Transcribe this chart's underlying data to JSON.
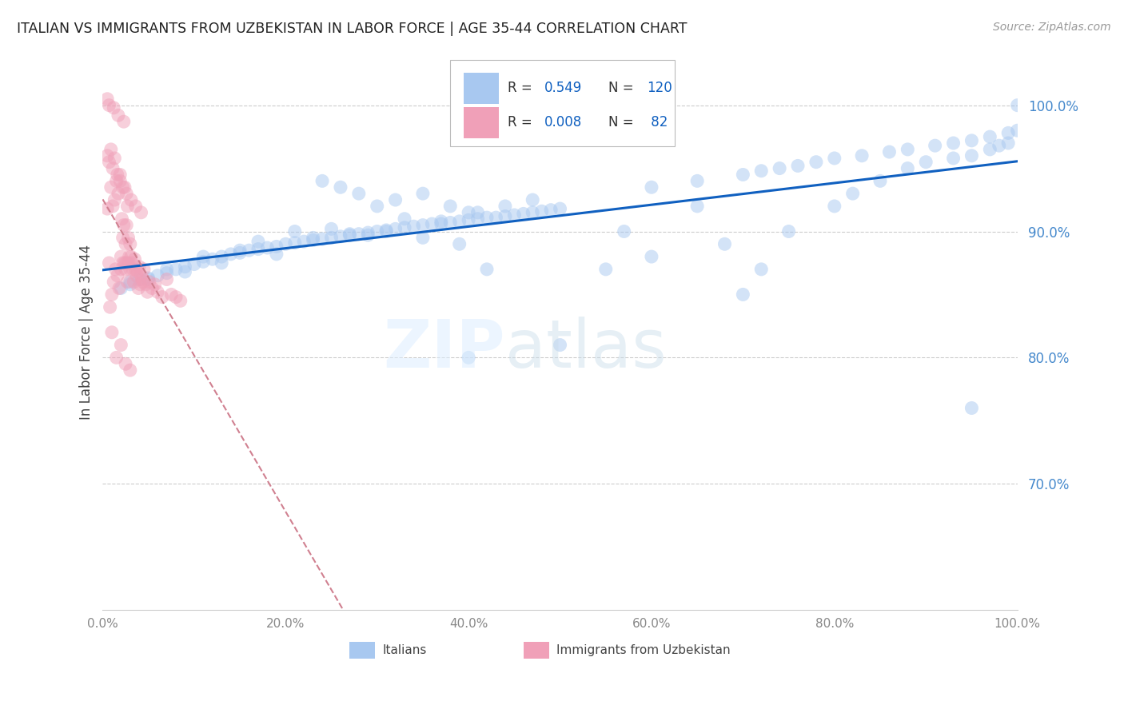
{
  "title": "ITALIAN VS IMMIGRANTS FROM UZBEKISTAN IN LABOR FORCE | AGE 35-44 CORRELATION CHART",
  "source": "Source: ZipAtlas.com",
  "ylabel": "In Labor Force | Age 35-44",
  "xlim": [
    0.0,
    1.0
  ],
  "ylim": [
    0.6,
    1.04
  ],
  "xticks": [
    0.0,
    0.2,
    0.4,
    0.6,
    0.8,
    1.0
  ],
  "xticklabels": [
    "0.0%",
    "20.0%",
    "40.0%",
    "60.0%",
    "80.0%",
    "100.0%"
  ],
  "yticks": [
    0.7,
    0.8,
    0.9,
    1.0
  ],
  "yticklabels": [
    "70.0%",
    "80.0%",
    "90.0%",
    "100.0%"
  ],
  "blue_color": "#a8c8f0",
  "pink_color": "#f0a0b8",
  "blue_line_color": "#1060c0",
  "pink_line_color": "#d08090",
  "ytick_color": "#4488cc",
  "xtick_color": "#888888",
  "bg_color": "#ffffff",
  "blue_scatter_x": [
    0.02,
    0.03,
    0.04,
    0.05,
    0.06,
    0.07,
    0.08,
    0.09,
    0.1,
    0.11,
    0.12,
    0.13,
    0.14,
    0.15,
    0.16,
    0.17,
    0.18,
    0.19,
    0.2,
    0.21,
    0.22,
    0.23,
    0.24,
    0.25,
    0.26,
    0.27,
    0.28,
    0.29,
    0.3,
    0.31,
    0.32,
    0.33,
    0.34,
    0.35,
    0.36,
    0.37,
    0.38,
    0.39,
    0.4,
    0.41,
    0.42,
    0.43,
    0.44,
    0.45,
    0.46,
    0.47,
    0.48,
    0.49,
    0.5,
    0.03,
    0.05,
    0.07,
    0.09,
    0.11,
    0.13,
    0.15,
    0.17,
    0.19,
    0.21,
    0.23,
    0.25,
    0.27,
    0.29,
    0.31,
    0.33,
    0.35,
    0.37,
    0.39,
    0.41,
    0.24,
    0.26,
    0.28,
    0.3,
    0.32,
    0.35,
    0.38,
    0.4,
    0.44,
    0.47,
    0.42,
    0.55,
    0.57,
    0.6,
    0.65,
    0.68,
    0.7,
    0.72,
    0.75,
    0.8,
    0.82,
    0.85,
    0.88,
    0.9,
    0.93,
    0.95,
    0.97,
    0.98,
    0.99,
    1.0,
    0.6,
    0.65,
    0.7,
    0.72,
    0.74,
    0.76,
    0.78,
    0.8,
    0.83,
    0.86,
    0.88,
    0.91,
    0.93,
    0.95,
    0.97,
    0.99,
    1.0,
    0.95,
    0.4,
    0.5
  ],
  "blue_scatter_y": [
    0.855,
    0.86,
    0.862,
    0.863,
    0.865,
    0.867,
    0.87,
    0.872,
    0.874,
    0.876,
    0.878,
    0.88,
    0.882,
    0.883,
    0.885,
    0.886,
    0.887,
    0.888,
    0.89,
    0.891,
    0.892,
    0.893,
    0.894,
    0.895,
    0.896,
    0.897,
    0.898,
    0.899,
    0.9,
    0.901,
    0.902,
    0.903,
    0.904,
    0.905,
    0.906,
    0.906,
    0.907,
    0.908,
    0.909,
    0.91,
    0.911,
    0.911,
    0.912,
    0.913,
    0.914,
    0.915,
    0.916,
    0.917,
    0.918,
    0.858,
    0.862,
    0.87,
    0.868,
    0.88,
    0.875,
    0.885,
    0.892,
    0.882,
    0.9,
    0.895,
    0.902,
    0.898,
    0.897,
    0.9,
    0.91,
    0.895,
    0.908,
    0.89,
    0.915,
    0.94,
    0.935,
    0.93,
    0.92,
    0.925,
    0.93,
    0.92,
    0.915,
    0.92,
    0.925,
    0.87,
    0.87,
    0.9,
    0.88,
    0.92,
    0.89,
    0.85,
    0.87,
    0.9,
    0.92,
    0.93,
    0.94,
    0.95,
    0.955,
    0.958,
    0.96,
    0.965,
    0.968,
    0.97,
    1.0,
    0.935,
    0.94,
    0.945,
    0.948,
    0.95,
    0.952,
    0.955,
    0.958,
    0.96,
    0.963,
    0.965,
    0.968,
    0.97,
    0.972,
    0.975,
    0.978,
    0.98,
    0.76,
    0.8,
    0.81
  ],
  "pink_scatter_x": [
    0.005,
    0.007,
    0.009,
    0.01,
    0.011,
    0.012,
    0.013,
    0.014,
    0.015,
    0.016,
    0.017,
    0.018,
    0.019,
    0.02,
    0.02,
    0.021,
    0.022,
    0.022,
    0.023,
    0.024,
    0.024,
    0.025,
    0.025,
    0.026,
    0.026,
    0.027,
    0.027,
    0.028,
    0.028,
    0.029,
    0.03,
    0.03,
    0.031,
    0.032,
    0.033,
    0.034,
    0.035,
    0.036,
    0.037,
    0.038,
    0.039,
    0.04,
    0.041,
    0.042,
    0.043,
    0.044,
    0.045,
    0.047,
    0.049,
    0.051,
    0.054,
    0.057,
    0.06,
    0.065,
    0.07,
    0.075,
    0.08,
    0.085,
    0.008,
    0.01,
    0.015,
    0.02,
    0.025,
    0.03,
    0.005,
    0.007,
    0.009,
    0.011,
    0.013,
    0.016,
    0.019,
    0.022,
    0.026,
    0.031,
    0.036,
    0.042,
    0.005,
    0.007,
    0.012,
    0.017,
    0.023
  ],
  "pink_scatter_y": [
    0.918,
    0.875,
    0.935,
    0.85,
    0.92,
    0.86,
    0.925,
    0.87,
    0.94,
    0.865,
    0.93,
    0.855,
    0.945,
    0.88,
    0.87,
    0.91,
    0.875,
    0.895,
    0.905,
    0.875,
    0.935,
    0.89,
    0.87,
    0.905,
    0.875,
    0.92,
    0.86,
    0.895,
    0.875,
    0.88,
    0.89,
    0.87,
    0.88,
    0.875,
    0.87,
    0.86,
    0.878,
    0.87,
    0.865,
    0.868,
    0.855,
    0.872,
    0.858,
    0.865,
    0.862,
    0.86,
    0.87,
    0.858,
    0.852,
    0.86,
    0.855,
    0.858,
    0.852,
    0.848,
    0.862,
    0.85,
    0.848,
    0.845,
    0.84,
    0.82,
    0.8,
    0.81,
    0.795,
    0.79,
    0.96,
    0.955,
    0.965,
    0.95,
    0.958,
    0.945,
    0.94,
    0.935,
    0.93,
    0.925,
    0.92,
    0.915,
    1.005,
    1.0,
    0.998,
    0.992,
    0.987
  ]
}
